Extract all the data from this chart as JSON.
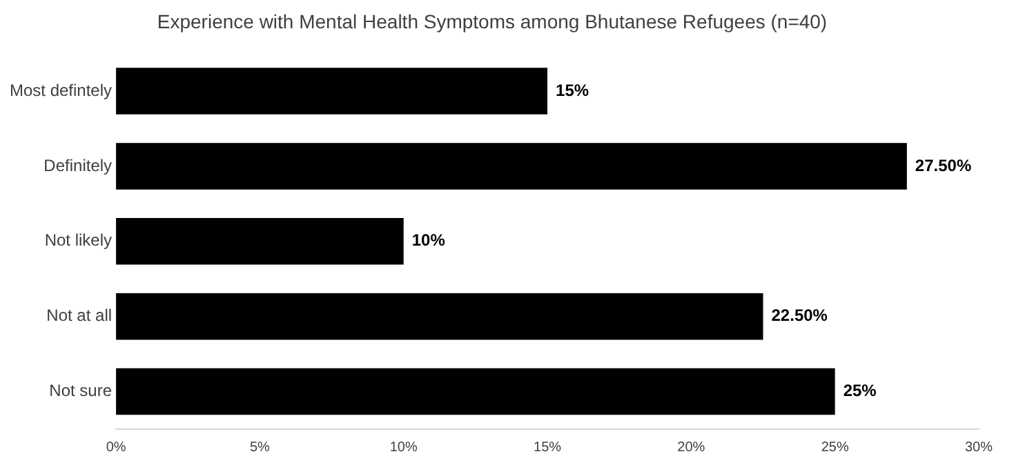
{
  "chart_data": {
    "type": "bar",
    "orientation": "horizontal",
    "title": "Experience with Mental Health Symptoms among Bhutanese Refugees (n=40)",
    "categories": [
      "Most defintely",
      "Definitely",
      "Not likely",
      "Not at all",
      "Not sure"
    ],
    "values": [
      15,
      27.5,
      10,
      22.5,
      25
    ],
    "value_labels": [
      "15%",
      "27.50%",
      "10%",
      "22.50%",
      "25%"
    ],
    "color": "#000000",
    "xlim": [
      0,
      30
    ],
    "xticks": [
      {
        "value": 0,
        "label": "0%"
      },
      {
        "value": 5,
        "label": "5%"
      },
      {
        "value": 10,
        "label": "10%"
      },
      {
        "value": 15,
        "label": "15%"
      },
      {
        "value": 20,
        "label": "20%"
      },
      {
        "value": 25,
        "label": "25%"
      },
      {
        "value": 30,
        "label": "30%"
      }
    ],
    "grid": false,
    "legend": false
  }
}
